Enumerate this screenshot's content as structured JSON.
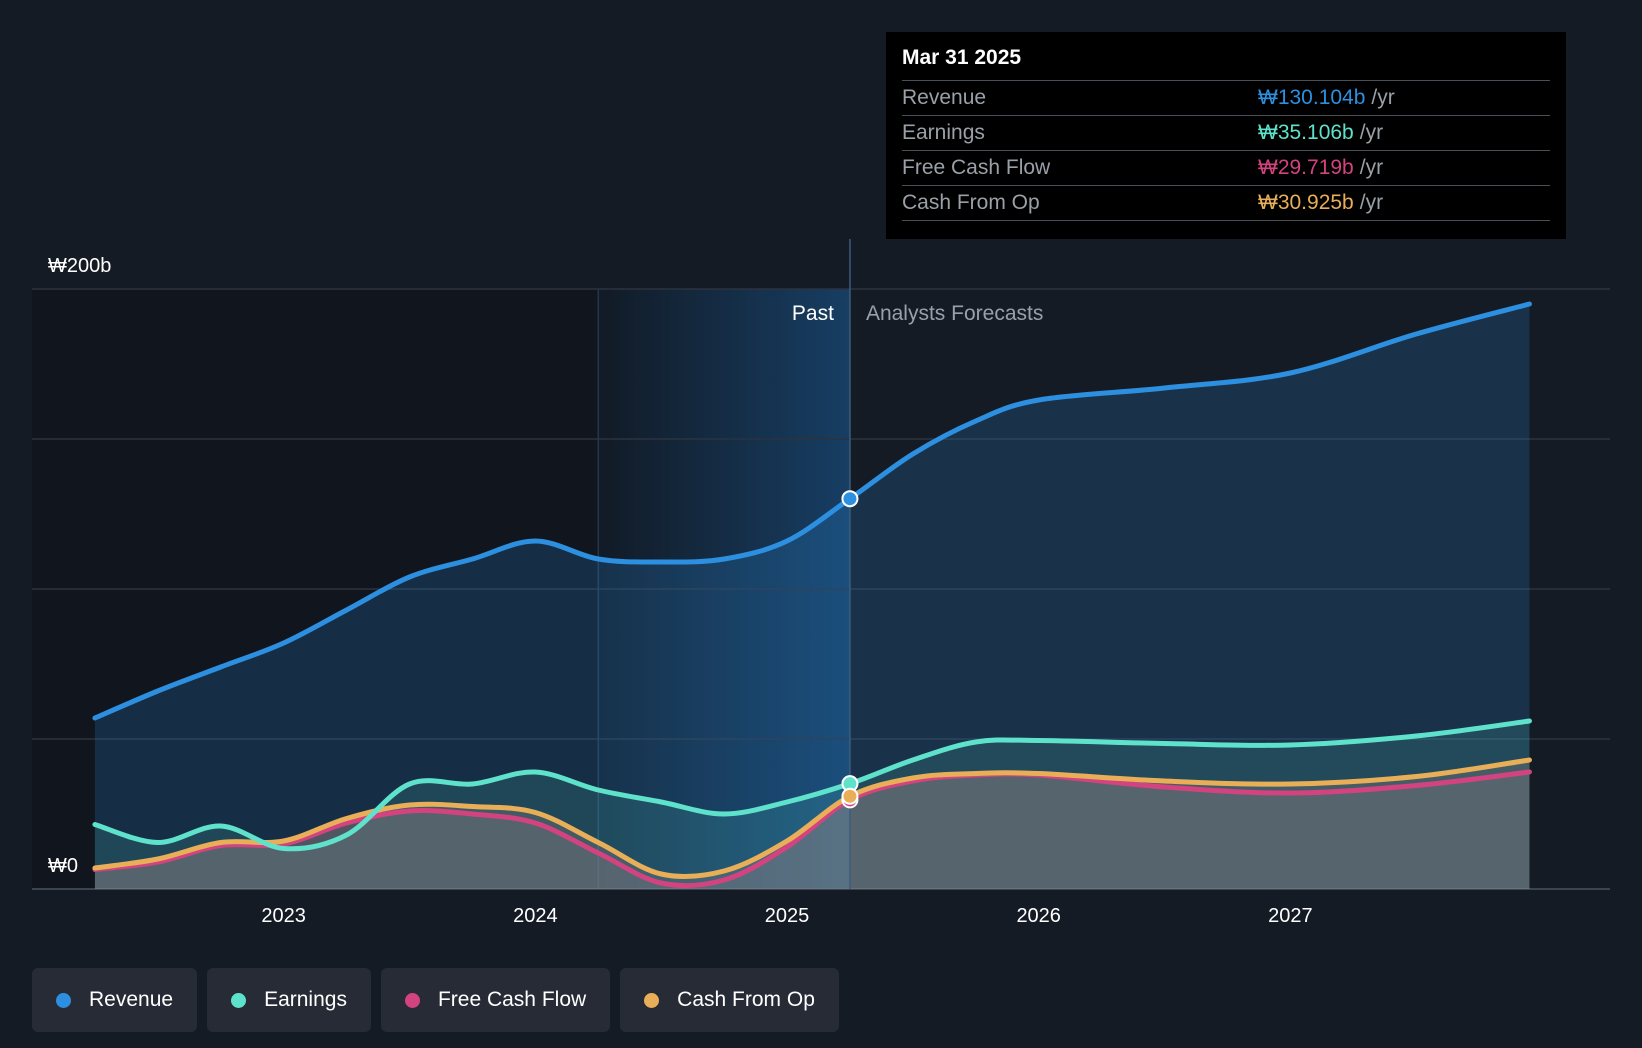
{
  "chart_data": {
    "type": "area",
    "y_axis": {
      "top_label": "₩200b",
      "bottom_label": "₩0",
      "ylim": [
        0,
        200
      ]
    },
    "x_ticks": [
      "2023",
      "2024",
      "2025",
      "2026",
      "2027"
    ],
    "x_range": [
      2022.25,
      2027.95
    ],
    "divider_x": 2025.25,
    "past_label": "Past",
    "forecast_label": "Analysts Forecasts",
    "series": [
      {
        "name": "Revenue",
        "color": "#2d8fe0",
        "points": [
          [
            2022.25,
            57
          ],
          [
            2022.5,
            66
          ],
          [
            2022.75,
            74
          ],
          [
            2023.0,
            82
          ],
          [
            2023.25,
            93
          ],
          [
            2023.5,
            104
          ],
          [
            2023.75,
            110
          ],
          [
            2024.0,
            116
          ],
          [
            2024.25,
            110
          ],
          [
            2024.5,
            109
          ],
          [
            2024.75,
            110
          ],
          [
            2025.0,
            116
          ],
          [
            2025.25,
            130.104
          ],
          [
            2025.5,
            145
          ],
          [
            2025.75,
            156
          ],
          [
            2026.0,
            163
          ],
          [
            2026.5,
            167
          ],
          [
            2027.0,
            172
          ],
          [
            2027.5,
            185
          ],
          [
            2027.95,
            195
          ]
        ]
      },
      {
        "name": "Earnings",
        "color": "#5fe2cc",
        "points": [
          [
            2022.25,
            21.5
          ],
          [
            2022.5,
            15.5
          ],
          [
            2022.75,
            21
          ],
          [
            2023.0,
            13.5
          ],
          [
            2023.25,
            18
          ],
          [
            2023.5,
            35
          ],
          [
            2023.75,
            35
          ],
          [
            2024.0,
            39
          ],
          [
            2024.25,
            33
          ],
          [
            2024.5,
            29
          ],
          [
            2024.75,
            25
          ],
          [
            2025.0,
            29
          ],
          [
            2025.25,
            35.106
          ],
          [
            2025.5,
            43
          ],
          [
            2025.75,
            49
          ],
          [
            2026.0,
            49.5
          ],
          [
            2026.5,
            48.5
          ],
          [
            2027.0,
            48
          ],
          [
            2027.5,
            51
          ],
          [
            2027.95,
            56
          ]
        ]
      },
      {
        "name": "Free Cash Flow",
        "color": "#d2437f",
        "points": [
          [
            2022.25,
            6.5
          ],
          [
            2022.5,
            9
          ],
          [
            2022.75,
            14.5
          ],
          [
            2023.0,
            15
          ],
          [
            2023.25,
            22
          ],
          [
            2023.5,
            26
          ],
          [
            2023.75,
            25
          ],
          [
            2024.0,
            22
          ],
          [
            2024.25,
            12
          ],
          [
            2024.5,
            2
          ],
          [
            2024.75,
            3
          ],
          [
            2025.0,
            14
          ],
          [
            2025.25,
            29.719
          ],
          [
            2025.5,
            36
          ],
          [
            2025.75,
            38
          ],
          [
            2026.0,
            38
          ],
          [
            2026.5,
            34
          ],
          [
            2027.0,
            32
          ],
          [
            2027.5,
            34.5
          ],
          [
            2027.95,
            39
          ]
        ]
      },
      {
        "name": "Cash From Op",
        "color": "#e9ae58",
        "points": [
          [
            2022.25,
            7
          ],
          [
            2022.5,
            10
          ],
          [
            2022.75,
            15.5
          ],
          [
            2023.0,
            16
          ],
          [
            2023.25,
            23.5
          ],
          [
            2023.5,
            28
          ],
          [
            2023.75,
            27.5
          ],
          [
            2024.0,
            25.5
          ],
          [
            2024.25,
            15.5
          ],
          [
            2024.5,
            5
          ],
          [
            2024.75,
            6
          ],
          [
            2025.0,
            16
          ],
          [
            2025.25,
            30.925
          ],
          [
            2025.5,
            37
          ],
          [
            2025.75,
            38.5
          ],
          [
            2026.0,
            38.5
          ],
          [
            2026.5,
            36
          ],
          [
            2027.0,
            35
          ],
          [
            2027.5,
            37.5
          ],
          [
            2027.95,
            43
          ]
        ]
      }
    ]
  },
  "tooltip": {
    "date": "Mar 31 2025",
    "rows": [
      {
        "label": "Revenue",
        "value": "₩130.104b",
        "unit": "/yr",
        "color": "#2d8fe0"
      },
      {
        "label": "Earnings",
        "value": "₩35.106b",
        "unit": "/yr",
        "color": "#5fe2cc"
      },
      {
        "label": "Free Cash Flow",
        "value": "₩29.719b",
        "unit": "/yr",
        "color": "#d2437f"
      },
      {
        "label": "Cash From Op",
        "value": "₩30.925b",
        "unit": "/yr",
        "color": "#e9ae58"
      }
    ]
  },
  "legend": [
    {
      "label": "Revenue",
      "color": "#2d8fe0"
    },
    {
      "label": "Earnings",
      "color": "#5fe2cc"
    },
    {
      "label": "Free Cash Flow",
      "color": "#d2437f"
    },
    {
      "label": "Cash From Op",
      "color": "#e9ae58"
    }
  ]
}
